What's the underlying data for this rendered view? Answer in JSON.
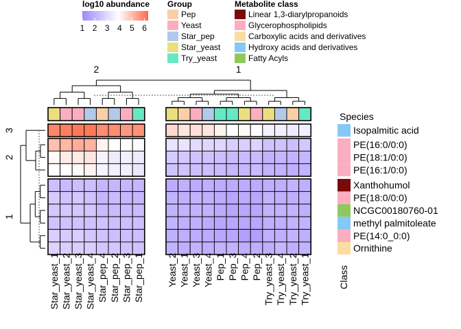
{
  "chart_data": {
    "type": "heatmap",
    "color_legend": {
      "title": "log10 abundance",
      "ticks": [
        "1",
        "2",
        "3",
        "4",
        "5",
        "6"
      ],
      "range": [
        1,
        6.3
      ],
      "low_color": "#9f87ff",
      "mid_color": "#ffffff",
      "high_color": "#ff6b4a"
    },
    "group_legend": {
      "title": "Group",
      "items": [
        {
          "label": "Pep",
          "color": "#f9cfa7"
        },
        {
          "label": "Yeast",
          "color": "#fbaec0"
        },
        {
          "label": "Star_pep",
          "color": "#b2c9ea"
        },
        {
          "label": "Star_yeast",
          "color": "#e9df7d"
        },
        {
          "label": "Try_yeast",
          "color": "#67e8c5"
        }
      ]
    },
    "class_legend": {
      "title": "Metabolite class",
      "items": [
        {
          "label": "Linear 1,3-diarylpropanoids",
          "color": "#7a0a0a"
        },
        {
          "label": "Glycerophospholipids",
          "color": "#fbaec0"
        },
        {
          "label": "Carboxylic acids and derivatives",
          "color": "#fbdca3"
        },
        {
          "label": "Hydroxy acids and derivatives",
          "color": "#86c8f7"
        },
        {
          "label": "Fatty Acyls",
          "color": "#8fc95b"
        }
      ]
    },
    "column_clusters": [
      {
        "label": "2",
        "columns": [
          "Star_yeast_1",
          "Star_yeast_2",
          "Star_yeast_3",
          "Star_yeast_4",
          "Star_pep_4",
          "Star_pep_2",
          "Star_pep_3",
          "Star_pep_1"
        ]
      },
      {
        "label": "1",
        "columns": [
          "Yeast_2",
          "Yeast_1",
          "Yeast_3",
          "Yeast_4",
          "Pep_1",
          "Pep_3",
          "Pep_4",
          "Pep_2",
          "Try_yeast_3",
          "Try_yeast_4",
          "Try_yeast_2",
          "Try_yeast_1"
        ]
      }
    ],
    "columns": [
      {
        "label": "Star_yeast_1",
        "group": "Star_yeast"
      },
      {
        "label": "Star_yeast_2",
        "group": "Yeast"
      },
      {
        "label": "Star_yeast_3",
        "group": "Yeast"
      },
      {
        "label": "Star_yeast_4",
        "group": "Star_pep"
      },
      {
        "label": "Star_pep_4",
        "group": "Pep"
      },
      {
        "label": "Star_pep_2",
        "group": "Star_pep"
      },
      {
        "label": "Star_pep_3",
        "group": "Yeast"
      },
      {
        "label": "Star_pep_1",
        "group": "Try_yeast"
      },
      {
        "label": "Yeast_2",
        "group": "Star_yeast"
      },
      {
        "label": "Yeast_1",
        "group": "Pep"
      },
      {
        "label": "Yeast_3",
        "group": "Yeast"
      },
      {
        "label": "Yeast_4",
        "group": "Star_pep"
      },
      {
        "label": "Pep_1",
        "group": "Try_yeast"
      },
      {
        "label": "Pep_3",
        "group": "Try_yeast"
      },
      {
        "label": "Pep_4",
        "group": "Star_yeast"
      },
      {
        "label": "Pep_2",
        "group": "Yeast"
      },
      {
        "label": "Try_yeast_3",
        "group": "Star_yeast"
      },
      {
        "label": "Try_yeast_4",
        "group": "Star_pep"
      },
      {
        "label": "Try_yeast_2",
        "group": "Pep"
      },
      {
        "label": "Try_yeast_1",
        "group": "Try_yeast"
      }
    ],
    "species_label": "Species",
    "class_label": "Class",
    "row_clusters": [
      {
        "label": "3",
        "rows": [
          "Isopalmitic acid"
        ]
      },
      {
        "label": "2",
        "rows": [
          "PE(16:0/0:0)",
          "PE(18:1/0:0)",
          "PE(16:1/0:0)"
        ]
      },
      {
        "label": "1",
        "rows": [
          "Xanthohumol",
          "PE(18:0/0:0)",
          "NCGC00180760-01",
          "methyl palmitoleate",
          "PE(14:0_0:0)",
          "Ornithine"
        ]
      }
    ],
    "rows": [
      {
        "label": "Isopalmitic acid",
        "class": "Hydroxy acids and derivatives"
      },
      {
        "label": "PE(16:0/0:0)",
        "class": "Glycerophospholipids"
      },
      {
        "label": "PE(18:1/0:0)",
        "class": "Glycerophospholipids"
      },
      {
        "label": "PE(16:1/0:0)",
        "class": "Glycerophospholipids"
      },
      {
        "label": "Xanthohumol",
        "class": "Linear 1,3-diarylpropanoids"
      },
      {
        "label": "PE(18:0/0:0)",
        "class": "Glycerophospholipids"
      },
      {
        "label": "NCGC00180760-01",
        "class": "Fatty Acyls"
      },
      {
        "label": "methyl palmitoleate",
        "class": "Hydroxy acids and derivatives"
      },
      {
        "label": "PE(14:0_0:0)",
        "class": "Glycerophospholipids"
      },
      {
        "label": "Ornithine",
        "class": "Carboxylic acids and derivatives"
      }
    ],
    "values": [
      [
        5.9,
        6.0,
        6.1,
        6.1,
        5.8,
        5.8,
        5.6,
        5.7,
        4.6,
        4.4,
        4.5,
        4.4,
        4.2,
        4.0,
        4.1,
        3.9,
        3.6,
        3.6,
        3.5,
        3.6
      ],
      [
        5.0,
        5.1,
        5.3,
        5.2,
        4.2,
        4.0,
        4.0,
        3.9,
        3.3,
        3.3,
        3.1,
        3.0,
        3.0,
        2.8,
        2.8,
        2.9,
        2.5,
        2.5,
        2.4,
        2.6
      ],
      [
        4.1,
        4.3,
        4.3,
        4.4,
        3.7,
        3.5,
        3.6,
        3.5,
        2.7,
        2.6,
        2.5,
        2.5,
        2.4,
        2.3,
        2.3,
        2.3,
        2.1,
        2.2,
        2.1,
        2.2
      ],
      [
        4.0,
        4.0,
        4.1,
        4.2,
        3.7,
        3.6,
        3.6,
        3.4,
        2.5,
        2.5,
        2.4,
        2.4,
        2.3,
        2.2,
        2.2,
        2.3,
        2.1,
        2.1,
        2.0,
        2.1
      ],
      [
        2.4,
        2.3,
        2.4,
        2.4,
        2.2,
        2.2,
        2.2,
        2.2,
        1.9,
        2.0,
        1.9,
        2.0,
        1.9,
        1.9,
        1.9,
        1.9,
        2.0,
        2.0,
        2.1,
        2.0
      ],
      [
        2.7,
        2.5,
        2.6,
        2.5,
        2.2,
        2.3,
        2.2,
        2.2,
        2.1,
        2.0,
        2.1,
        2.0,
        1.9,
        1.8,
        1.9,
        1.8,
        2.1,
        2.0,
        2.0,
        2.1
      ],
      [
        2.6,
        2.6,
        2.6,
        2.6,
        2.3,
        2.3,
        2.3,
        2.3,
        2.1,
        2.1,
        2.1,
        2.1,
        1.9,
        1.8,
        1.8,
        1.8,
        2.1,
        2.1,
        2.1,
        2.0
      ],
      [
        2.5,
        2.5,
        2.5,
        2.5,
        2.5,
        2.4,
        2.4,
        2.4,
        2.1,
        2.0,
        2.0,
        1.9,
        1.8,
        1.8,
        1.8,
        1.8,
        2.0,
        2.0,
        2.1,
        2.1
      ],
      [
        2.8,
        2.7,
        2.8,
        2.6,
        2.5,
        2.4,
        2.4,
        2.4,
        2.0,
        2.0,
        1.9,
        1.9,
        1.8,
        1.8,
        1.6,
        1.6,
        2.0,
        2.0,
        2.1,
        2.0
      ],
      [
        2.9,
        2.8,
        2.8,
        2.8,
        2.6,
        2.6,
        2.5,
        2.5,
        2.1,
        2.0,
        2.1,
        2.0,
        2.1,
        2.1,
        2.0,
        2.0,
        2.0,
        2.2,
        2.0,
        2.1
      ]
    ]
  }
}
